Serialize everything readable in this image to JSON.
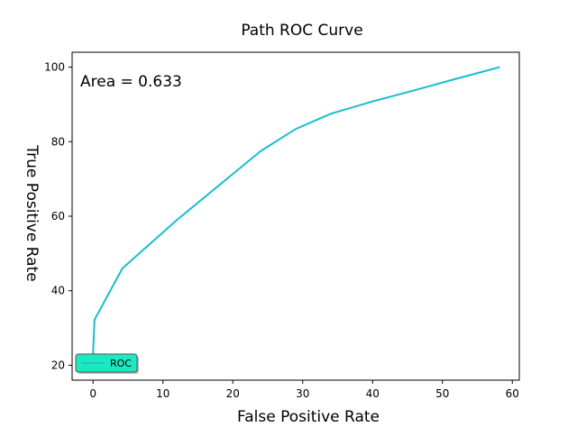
{
  "chart_data": {
    "type": "line",
    "title": "Path ROC Curve",
    "xlabel": "False Positive Rate",
    "ylabel": "True Positive Rate",
    "annotation": "Area = 0.633",
    "xlim": [
      -3,
      61
    ],
    "ylim": [
      16,
      104
    ],
    "xticks": [
      0,
      10,
      20,
      30,
      40,
      50,
      60
    ],
    "yticks": [
      20,
      40,
      60,
      80,
      100
    ],
    "grid": false,
    "legend_position": "bottom-left",
    "series": [
      {
        "name": "ROC",
        "color": "#17becf",
        "x": [
          0,
          0,
          0.2,
          4.2,
          12,
          24,
          29,
          34,
          40,
          46,
          52,
          58.2
        ],
        "y": [
          18.8,
          23.5,
          32.2,
          46,
          59,
          77.5,
          83.4,
          87.5,
          90.8,
          93.8,
          96.9,
          100
        ]
      }
    ],
    "legend_bg": "#1de9c0"
  }
}
